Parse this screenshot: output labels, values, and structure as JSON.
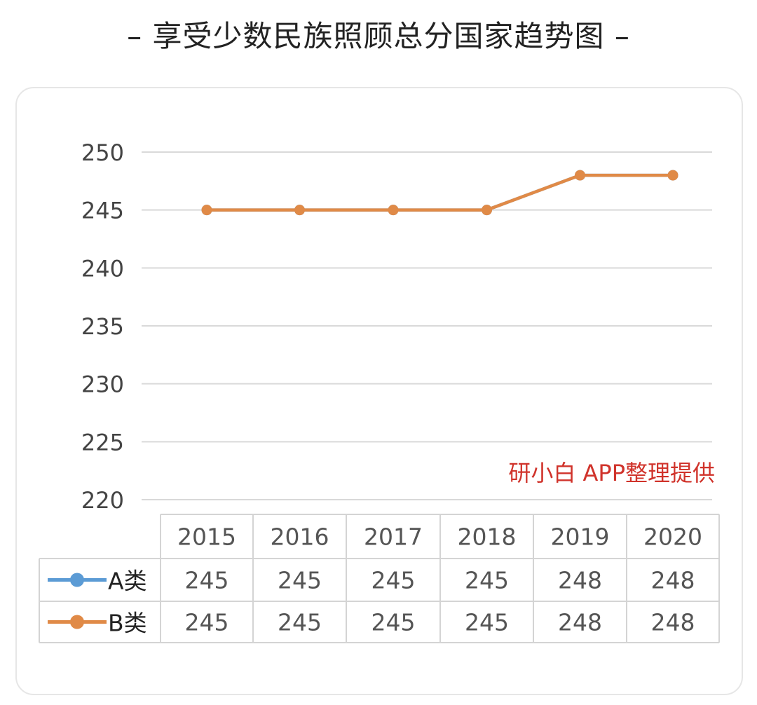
{
  "title": "– 享受少数民族照顾总分国家趋势图 –",
  "watermark": "研小白 APP整理提供",
  "chart_data": {
    "type": "line",
    "categories": [
      "2015",
      "2016",
      "2017",
      "2018",
      "2019",
      "2020"
    ],
    "series": [
      {
        "name": "A类",
        "values": [
          245,
          245,
          245,
          245,
          248,
          248
        ],
        "color": "#5b9bd5"
      },
      {
        "name": "B类",
        "values": [
          245,
          245,
          245,
          245,
          248,
          248
        ],
        "color": "#e08a47"
      }
    ],
    "y_ticks": [
      "250",
      "245",
      "240",
      "235",
      "230",
      "225",
      "220"
    ],
    "ylim": [
      220,
      250
    ],
    "grid": true,
    "legend": "data-table",
    "table": {
      "header": [
        "2015",
        "2016",
        "2017",
        "2018",
        "2019",
        "2020"
      ],
      "rows": [
        {
          "label": "A类",
          "cells": [
            "245",
            "245",
            "245",
            "245",
            "248",
            "248"
          ]
        },
        {
          "label": "B类",
          "cells": [
            "245",
            "245",
            "245",
            "245",
            "248",
            "248"
          ]
        }
      ]
    }
  }
}
